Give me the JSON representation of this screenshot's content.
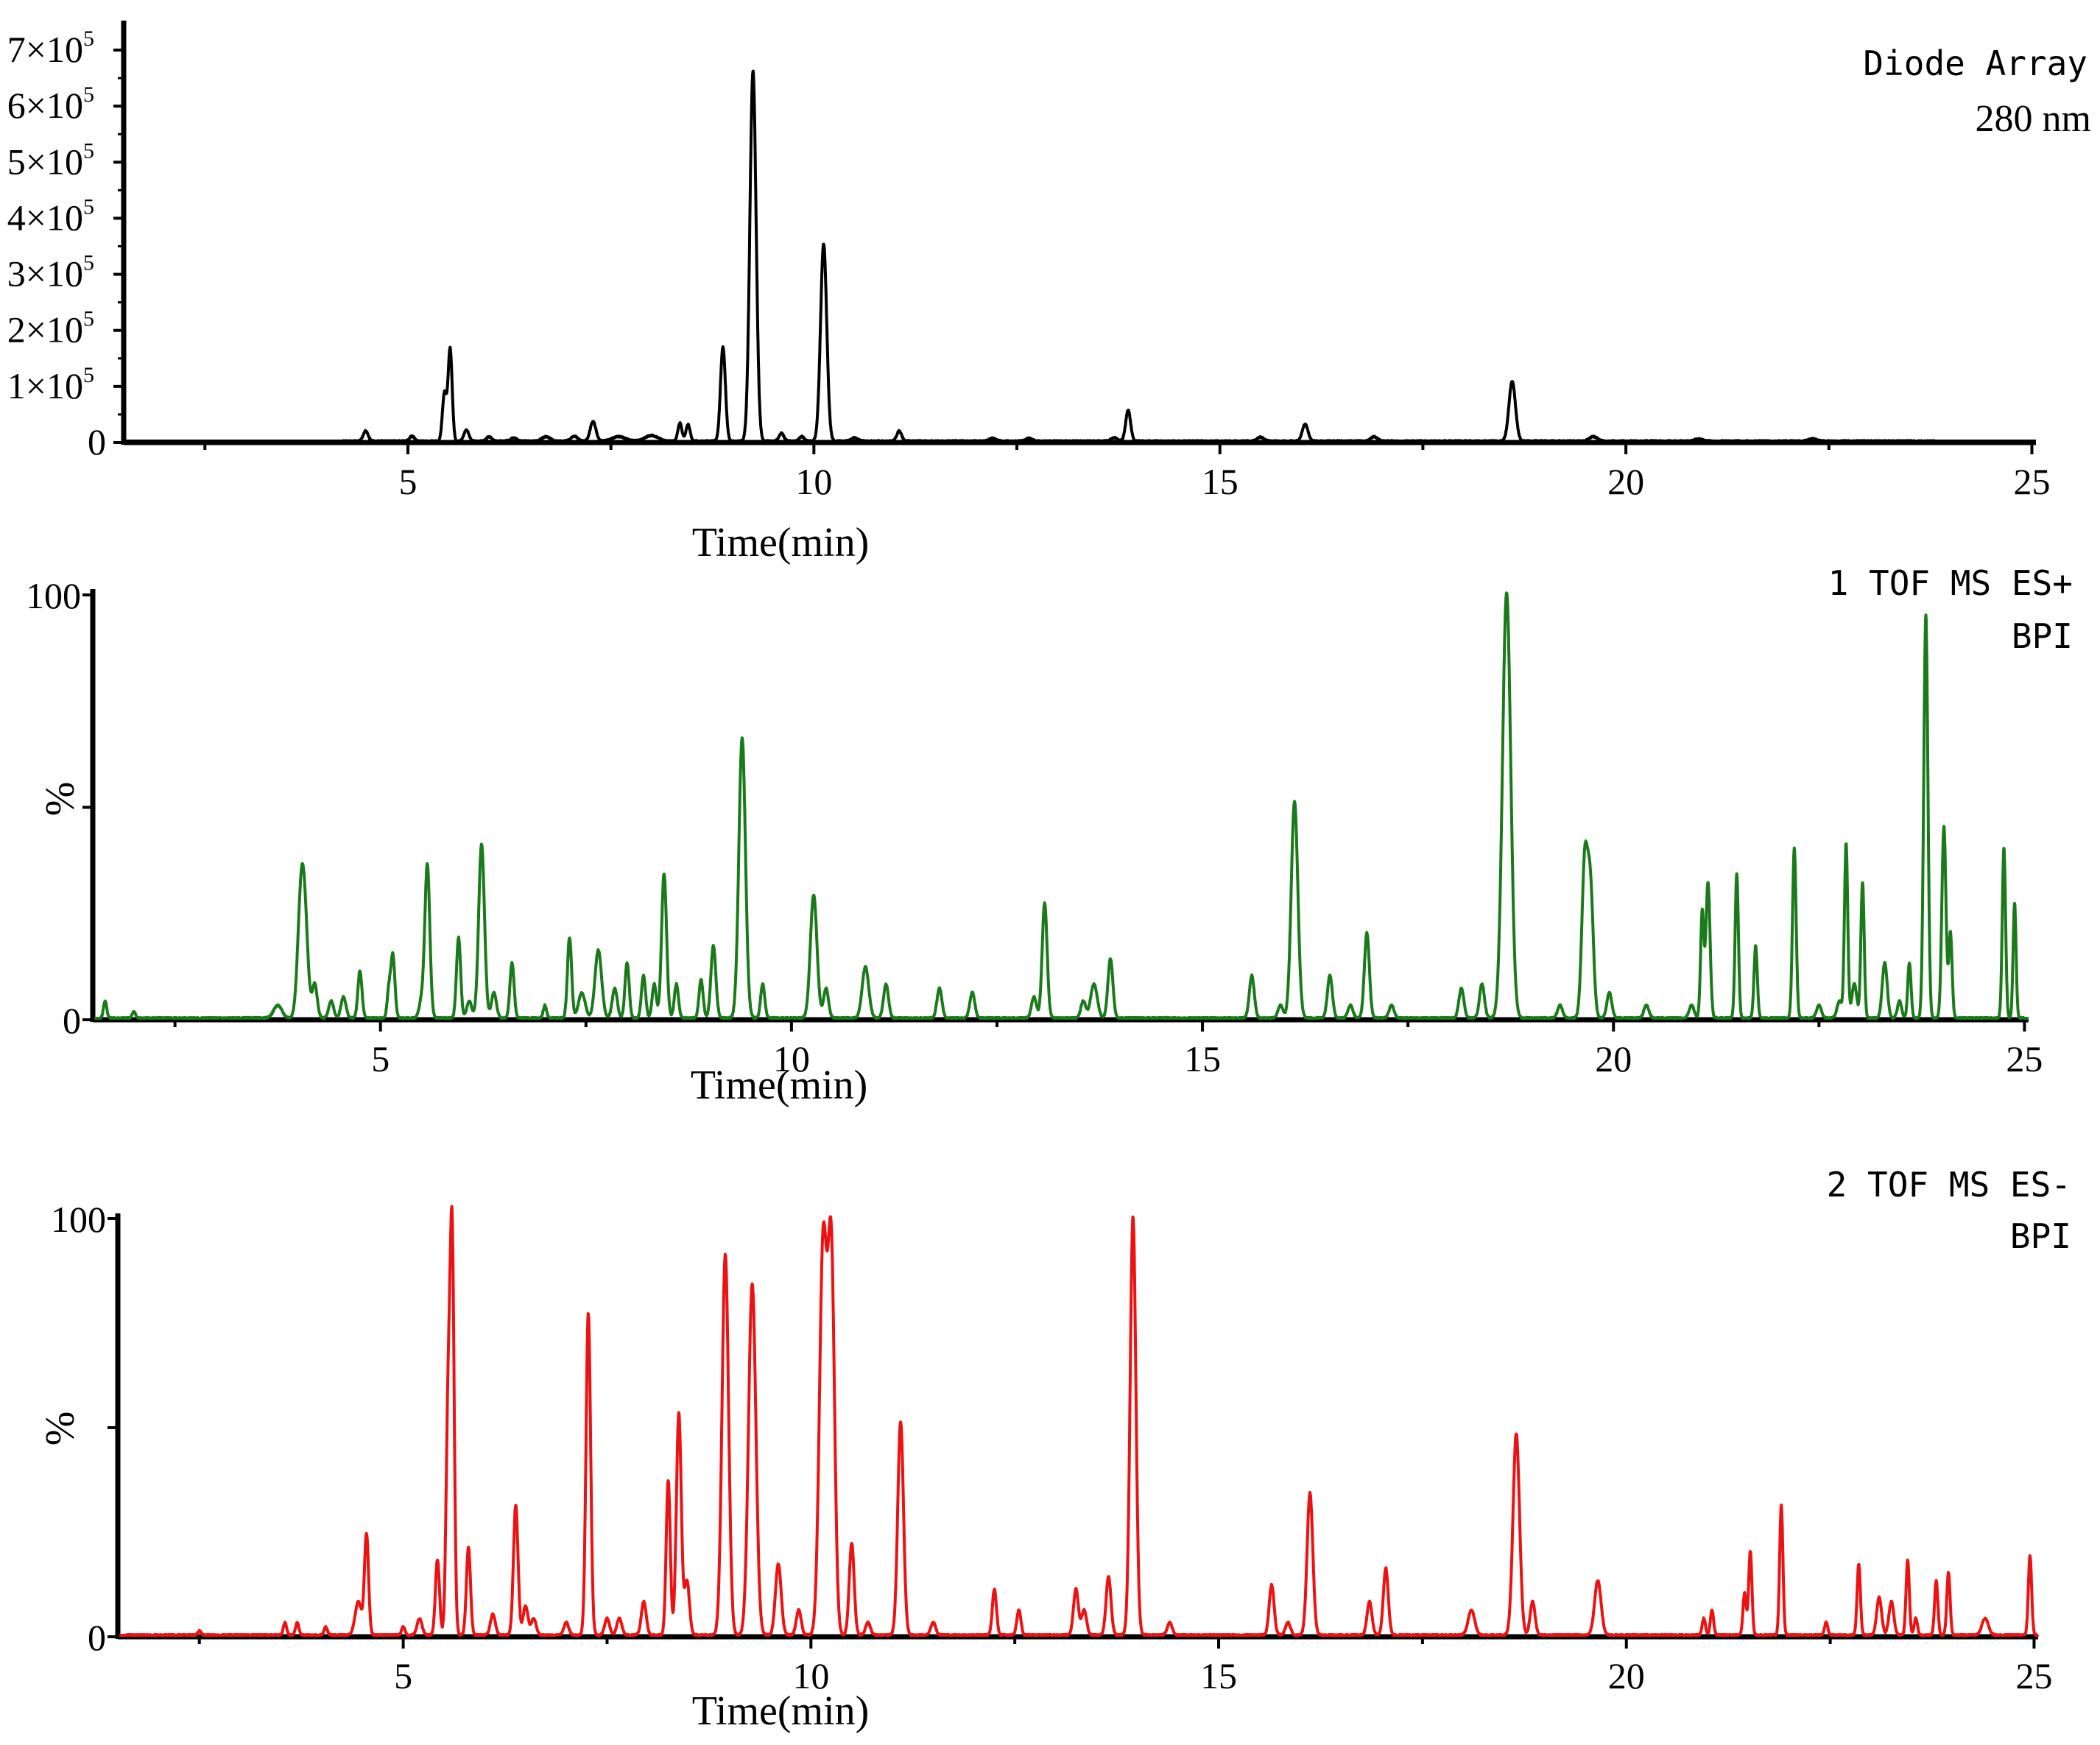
{
  "chart_data": [
    {
      "type": "line",
      "panel": "uv",
      "legend": [
        "Diode Array",
        "280 nm"
      ],
      "xlabel": "Time(min)",
      "ylabel": "",
      "xlim": [
        1.5,
        25.05
      ],
      "ylim": [
        0,
        750000
      ],
      "xticks": [
        5,
        10,
        15,
        20,
        25
      ],
      "xtick_labels": [
        "5",
        "10",
        "15",
        "20",
        "25"
      ],
      "yticks": [
        0,
        100000,
        200000,
        300000,
        400000,
        500000,
        600000,
        700000
      ],
      "ytick_labels": [
        {
          "mant": "0",
          "exp": ""
        },
        {
          "mant": "1×10",
          "exp": "5"
        },
        {
          "mant": "2×10",
          "exp": "5"
        },
        {
          "mant": "3×10",
          "exp": "5"
        },
        {
          "mant": "4×10",
          "exp": "5"
        },
        {
          "mant": "5×10",
          "exp": "5"
        },
        {
          "mant": "6×10",
          "exp": "5"
        },
        {
          "mant": "7×10",
          "exp": "5"
        }
      ],
      "color": "#000000",
      "baseline": 2500,
      "range": [
        4.2,
        23.8
      ],
      "peaks": [
        [
          4.48,
          18000,
          0.03
        ],
        [
          5.05,
          9000,
          0.03
        ],
        [
          5.45,
          85000,
          0.025
        ],
        [
          5.52,
          165000,
          0.025
        ],
        [
          5.72,
          20000,
          0.03
        ],
        [
          6.0,
          8000,
          0.03
        ],
        [
          6.3,
          6000,
          0.04
        ],
        [
          6.7,
          8000,
          0.05
        ],
        [
          7.05,
          9000,
          0.04
        ],
        [
          7.28,
          35000,
          0.035
        ],
        [
          7.6,
          8000,
          0.08
        ],
        [
          8.0,
          10000,
          0.08
        ],
        [
          8.35,
          32000,
          0.025
        ],
        [
          8.45,
          30000,
          0.025
        ],
        [
          8.88,
          168000,
          0.03
        ],
        [
          9.25,
          660000,
          0.038
        ],
        [
          9.6,
          14000,
          0.03
        ],
        [
          9.85,
          8000,
          0.03
        ],
        [
          10.12,
          352000,
          0.038
        ],
        [
          10.5,
          6000,
          0.04
        ],
        [
          11.05,
          18000,
          0.03
        ],
        [
          12.2,
          5000,
          0.04
        ],
        [
          12.65,
          5000,
          0.04
        ],
        [
          13.7,
          6000,
          0.04
        ],
        [
          13.87,
          55000,
          0.03
        ],
        [
          15.5,
          7000,
          0.04
        ],
        [
          16.05,
          30000,
          0.035
        ],
        [
          16.9,
          8000,
          0.04
        ],
        [
          18.6,
          107000,
          0.04
        ],
        [
          19.6,
          8000,
          0.05
        ],
        [
          20.9,
          4000,
          0.05
        ],
        [
          22.3,
          4000,
          0.05
        ]
      ]
    },
    {
      "type": "line",
      "panel": "es-plus",
      "legend": [
        "1 TOF MS ES+",
        "BPI"
      ],
      "xlabel": "Time(min)",
      "ylabel": "%",
      "xlim": [
        1.5,
        25.05
      ],
      "ylim": [
        0,
        100
      ],
      "xticks": [
        5,
        10,
        15,
        20,
        25
      ],
      "xtick_labels": [
        "5",
        "10",
        "15",
        "20",
        "25"
      ],
      "yticks": [
        0,
        50,
        100
      ],
      "ytick_labels": [
        "0",
        "",
        "100"
      ],
      "color": "#1a7a1a",
      "baseline": 0.4,
      "range": [
        1.6,
        25.0
      ],
      "peaks": [
        [
          1.65,
          4,
          0.02
        ],
        [
          2.0,
          1.5,
          0.02
        ],
        [
          3.75,
          3,
          0.05
        ],
        [
          4.03,
          24,
          0.04
        ],
        [
          4.08,
          20,
          0.04
        ],
        [
          4.2,
          8,
          0.03
        ],
        [
          4.4,
          4,
          0.03
        ],
        [
          4.55,
          5,
          0.03
        ],
        [
          4.75,
          11,
          0.025
        ],
        [
          5.1,
          6,
          0.02
        ],
        [
          5.15,
          15,
          0.025
        ],
        [
          5.5,
          4,
          0.03
        ],
        [
          5.57,
          36,
          0.03
        ],
        [
          5.95,
          19,
          0.025
        ],
        [
          6.08,
          4,
          0.03
        ],
        [
          6.23,
          41,
          0.035
        ],
        [
          6.38,
          6,
          0.03
        ],
        [
          6.6,
          13,
          0.025
        ],
        [
          7.0,
          3,
          0.02
        ],
        [
          7.3,
          19,
          0.025
        ],
        [
          7.45,
          6,
          0.04
        ],
        [
          7.65,
          16,
          0.04
        ],
        [
          7.85,
          7,
          0.03
        ],
        [
          8.0,
          13,
          0.025
        ],
        [
          8.2,
          10,
          0.025
        ],
        [
          8.33,
          8,
          0.025
        ],
        [
          8.45,
          34,
          0.03
        ],
        [
          8.6,
          8,
          0.025
        ],
        [
          8.9,
          9,
          0.025
        ],
        [
          9.05,
          17,
          0.03
        ],
        [
          9.4,
          66,
          0.04
        ],
        [
          9.65,
          8,
          0.025
        ],
        [
          10.27,
          29,
          0.04
        ],
        [
          10.42,
          7,
          0.03
        ],
        [
          10.9,
          12,
          0.04
        ],
        [
          11.15,
          8,
          0.03
        ],
        [
          11.8,
          7,
          0.03
        ],
        [
          12.2,
          6,
          0.03
        ],
        [
          12.95,
          5,
          0.03
        ],
        [
          13.08,
          27,
          0.03
        ],
        [
          13.55,
          4,
          0.03
        ],
        [
          13.68,
          8,
          0.04
        ],
        [
          13.88,
          14,
          0.03
        ],
        [
          15.6,
          10,
          0.03
        ],
        [
          15.95,
          3,
          0.03
        ],
        [
          16.12,
          51,
          0.04
        ],
        [
          16.55,
          10,
          0.03
        ],
        [
          16.8,
          3,
          0.03
        ],
        [
          17.0,
          20,
          0.03
        ],
        [
          17.3,
          3,
          0.03
        ],
        [
          18.15,
          7,
          0.03
        ],
        [
          18.4,
          8,
          0.03
        ],
        [
          18.7,
          100,
          0.05
        ],
        [
          19.35,
          3,
          0.03
        ],
        [
          19.65,
          36,
          0.035
        ],
        [
          19.72,
          30,
          0.035
        ],
        [
          19.95,
          6,
          0.03
        ],
        [
          20.4,
          3,
          0.03
        ],
        [
          20.95,
          3,
          0.03
        ],
        [
          21.08,
          25,
          0.02
        ],
        [
          21.15,
          32,
          0.025
        ],
        [
          21.5,
          34,
          0.02
        ],
        [
          21.73,
          17,
          0.02
        ],
        [
          22.2,
          40,
          0.022
        ],
        [
          22.5,
          3,
          0.03
        ],
        [
          22.75,
          4,
          0.03
        ],
        [
          22.83,
          41,
          0.02
        ],
        [
          22.93,
          8,
          0.03
        ],
        [
          23.03,
          32,
          0.02
        ],
        [
          23.3,
          13,
          0.03
        ],
        [
          23.48,
          4,
          0.025
        ],
        [
          23.6,
          13,
          0.02
        ],
        [
          23.8,
          95,
          0.025
        ],
        [
          24.02,
          45,
          0.025
        ],
        [
          24.1,
          20,
          0.02
        ],
        [
          24.75,
          40,
          0.02
        ],
        [
          24.88,
          27,
          0.018
        ]
      ]
    },
    {
      "type": "line",
      "panel": "es-minus",
      "legend": [
        "2 TOF MS ES-",
        "BPI"
      ],
      "xlabel": "Time(min)",
      "ylabel": "%",
      "xlim": [
        1.5,
        25.05
      ],
      "ylim": [
        0,
        100
      ],
      "xticks": [
        5,
        10,
        15,
        20,
        25
      ],
      "xtick_labels": [
        "5",
        "10",
        "15",
        "20",
        "25"
      ],
      "yticks": [
        0,
        50,
        100
      ],
      "ytick_labels": [
        "0",
        "",
        "100"
      ],
      "color": "#ee1111",
      "baseline": 0.4,
      "range": [
        1.6,
        25.05
      ],
      "peaks": [
        [
          2.5,
          1,
          0.02
        ],
        [
          3.55,
          3,
          0.02
        ],
        [
          3.7,
          3,
          0.02
        ],
        [
          4.05,
          2,
          0.02
        ],
        [
          4.45,
          8,
          0.04
        ],
        [
          4.55,
          24,
          0.025
        ],
        [
          5.0,
          2,
          0.02
        ],
        [
          5.2,
          4,
          0.03
        ],
        [
          5.42,
          18,
          0.025
        ],
        [
          5.55,
          52,
          0.025
        ],
        [
          5.6,
          94,
          0.025
        ],
        [
          5.8,
          21,
          0.025
        ],
        [
          6.1,
          5,
          0.03
        ],
        [
          6.38,
          31,
          0.028
        ],
        [
          6.5,
          7,
          0.03
        ],
        [
          6.6,
          4,
          0.03
        ],
        [
          7.0,
          3,
          0.03
        ],
        [
          7.27,
          77,
          0.028
        ],
        [
          7.5,
          4,
          0.03
        ],
        [
          7.65,
          4,
          0.03
        ],
        [
          7.95,
          8,
          0.03
        ],
        [
          8.25,
          37,
          0.025
        ],
        [
          8.38,
          53,
          0.03
        ],
        [
          8.48,
          13,
          0.03
        ],
        [
          8.95,
          91,
          0.04
        ],
        [
          9.28,
          84,
          0.045
        ],
        [
          9.6,
          17,
          0.035
        ],
        [
          9.85,
          6,
          0.03
        ],
        [
          10.15,
          94,
          0.045
        ],
        [
          10.25,
          90,
          0.04
        ],
        [
          10.5,
          22,
          0.03
        ],
        [
          10.7,
          3,
          0.03
        ],
        [
          11.1,
          51,
          0.035
        ],
        [
          11.5,
          3,
          0.03
        ],
        [
          12.25,
          11,
          0.025
        ],
        [
          12.55,
          6,
          0.025
        ],
        [
          13.25,
          11,
          0.03
        ],
        [
          13.35,
          6,
          0.03
        ],
        [
          13.65,
          14,
          0.03
        ],
        [
          13.95,
          100,
          0.035
        ],
        [
          14.4,
          3,
          0.03
        ],
        [
          15.65,
          12,
          0.03
        ],
        [
          15.85,
          3,
          0.03
        ],
        [
          16.12,
          34,
          0.035
        ],
        [
          16.85,
          8,
          0.03
        ],
        [
          17.05,
          16,
          0.03
        ],
        [
          18.1,
          6,
          0.04
        ],
        [
          18.65,
          48,
          0.04
        ],
        [
          18.85,
          8,
          0.03
        ],
        [
          19.65,
          13,
          0.04
        ],
        [
          20.95,
          4,
          0.02
        ],
        [
          21.05,
          6,
          0.02
        ],
        [
          21.45,
          10,
          0.02
        ],
        [
          21.52,
          20,
          0.02
        ],
        [
          21.9,
          31,
          0.02
        ],
        [
          22.45,
          3,
          0.02
        ],
        [
          22.85,
          17,
          0.02
        ],
        [
          23.1,
          9,
          0.03
        ],
        [
          23.25,
          8,
          0.03
        ],
        [
          23.45,
          18,
          0.02
        ],
        [
          23.55,
          4,
          0.02
        ],
        [
          23.8,
          13,
          0.02
        ],
        [
          23.95,
          15,
          0.02
        ],
        [
          24.4,
          4,
          0.04
        ],
        [
          24.95,
          19,
          0.02
        ]
      ]
    }
  ]
}
